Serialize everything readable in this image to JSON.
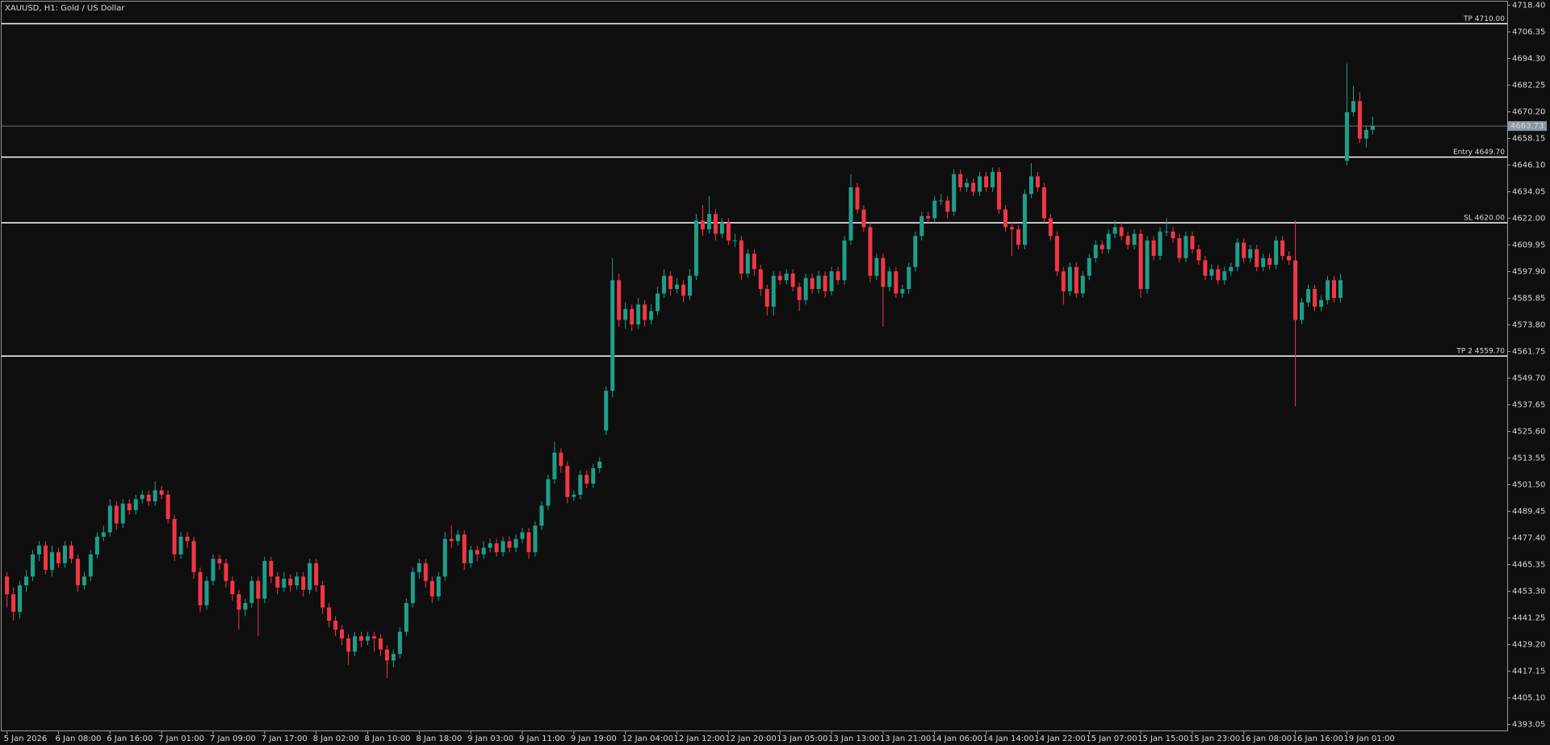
{
  "chart_data": {
    "type": "candlestick",
    "title": "XAUUSD, H1:  Gold / US Dollar",
    "up_color": "#1f9e89",
    "down_color": "#f23645",
    "level_color": "#ffffff",
    "bid_color": "#8a96a3",
    "ylim": [
      4390,
      4720
    ],
    "yticks": [
      {
        "value": 4718.4,
        "label": "4718.40"
      },
      4706.35,
      {
        "value": 4694.3,
        "label": "4694.30"
      },
      4682.25,
      {
        "value": 4670.2,
        "label": "4670.20"
      },
      4658.15,
      {
        "value": 4646.1,
        "label": "4646.10"
      },
      4634.05,
      {
        "value": 4622,
        "label": "4622.00"
      },
      4609.95,
      {
        "value": 4597.9,
        "label": "4597.90"
      },
      4585.85,
      {
        "value": 4573.8,
        "label": "4573.80"
      },
      4561.75,
      {
        "value": 4549.7,
        "label": "4549.70"
      },
      4537.65,
      {
        "value": 4525.6,
        "label": "4525.60"
      },
      4513.55,
      {
        "value": 4501.5,
        "label": "4501.50"
      },
      4489.45,
      {
        "value": 4477.4,
        "label": "4477.40"
      },
      4465.35,
      {
        "value": 4453.3,
        "label": "4453.30"
      },
      4441.25,
      {
        "value": 4429.2,
        "label": "4429.20"
      },
      4417.15,
      {
        "value": 4405.1,
        "label": "4405.10"
      },
      4393.05
    ],
    "levels": [
      {
        "value": 4710,
        "label": "TP 4710.00"
      },
      {
        "value": 4649.7,
        "label": "Entry 4649.70"
      },
      {
        "value": 4620,
        "label": "SL 4620.00"
      },
      {
        "value": 4559.7,
        "label": "TP 2 4559.70"
      }
    ],
    "bid": 4663.73,
    "categories": [
      "5 Jan 2026",
      null,
      null,
      null,
      null,
      null,
      null,
      null,
      "6 Jan 08:00",
      null,
      null,
      null,
      null,
      null,
      null,
      null,
      "6 Jan 16:00",
      null,
      null,
      null,
      null,
      null,
      null,
      null,
      "7 Jan 01:00",
      null,
      null,
      null,
      null,
      null,
      null,
      null,
      "7 Jan 09:00",
      null,
      null,
      null,
      null,
      null,
      null,
      null,
      "7 Jan 17:00",
      null,
      null,
      null,
      null,
      null,
      null,
      null,
      "8 Jan 02:00",
      null,
      null,
      null,
      null,
      null,
      null,
      null,
      "8 Jan 10:00",
      null,
      null,
      null,
      null,
      null,
      null,
      null,
      "8 Jan 18:00",
      null,
      null,
      null,
      null,
      null,
      null,
      null,
      "9 Jan 03:00",
      null,
      null,
      null,
      null,
      null,
      null,
      null,
      "9 Jan 11:00",
      null,
      null,
      null,
      null,
      null,
      null,
      null,
      "9 Jan 19:00",
      null,
      null,
      null,
      null,
      null,
      null,
      null,
      "12 Jan 04:00",
      null,
      null,
      null,
      null,
      null,
      null,
      null,
      "12 Jan 12:00",
      null,
      null,
      null,
      null,
      null,
      null,
      null,
      "12 Jan 20:00",
      null,
      null,
      null,
      null,
      null,
      null,
      null,
      "13 Jan 05:00",
      null,
      null,
      null,
      null,
      null,
      null,
      null,
      "13 Jan 13:00",
      null,
      null,
      null,
      null,
      null,
      null,
      null,
      "13 Jan 21:00",
      null,
      null,
      null,
      null,
      null,
      null,
      null,
      "14 Jan 06:00",
      null,
      null,
      null,
      null,
      null,
      null,
      null,
      "14 Jan 14:00",
      null,
      null,
      null,
      null,
      null,
      null,
      null,
      "14 Jan 22:00",
      null,
      null,
      null,
      null,
      null,
      null,
      null,
      "15 Jan 07:00",
      null,
      null,
      null,
      null,
      null,
      null,
      null,
      "15 Jan 15:00",
      null,
      null,
      null,
      null,
      null,
      null,
      null,
      "15 Jan 23:00",
      null,
      null,
      null,
      null,
      null,
      null,
      null,
      "16 Jan 08:00",
      null,
      null,
      null,
      null,
      null,
      null,
      null,
      "16 Jan 16:00",
      null,
      null,
      null,
      null,
      null,
      null,
      null,
      "19 Jan 01:00",
      null,
      null,
      null,
      null
    ],
    "ohlc": [
      [
        4460,
        4462,
        4446,
        4452
      ],
      [
        4452,
        4455,
        4440,
        4444
      ],
      [
        4444,
        4458,
        4441,
        4456
      ],
      [
        4456,
        4463,
        4453,
        4460
      ],
      [
        4460,
        4472,
        4458,
        4470
      ],
      [
        4470,
        4476,
        4467,
        4474
      ],
      [
        4474,
        4476,
        4461,
        4463
      ],
      [
        4463,
        4474,
        4460,
        4471
      ],
      [
        4471,
        4473,
        4464,
        4466
      ],
      [
        4466,
        4476,
        4464,
        4474
      ],
      [
        4474,
        4476,
        4466,
        4468
      ],
      [
        4468,
        4470,
        4453,
        4456
      ],
      [
        4456,
        4462,
        4454,
        4460
      ],
      [
        4460,
        4472,
        4458,
        4470
      ],
      [
        4470,
        4480,
        4468,
        4478
      ],
      [
        4478,
        4483,
        4476,
        4480
      ],
      [
        4480,
        4495,
        4478,
        4492
      ],
      [
        4492,
        4494,
        4481,
        4484
      ],
      [
        4484,
        4495,
        4482,
        4493
      ],
      [
        4493,
        4495,
        4488,
        4490
      ],
      [
        4490,
        4497,
        4488,
        4495
      ],
      [
        4495,
        4499,
        4493,
        4497
      ],
      [
        4497,
        4499,
        4492,
        4494
      ],
      [
        4494,
        4503,
        4492,
        4499
      ],
      [
        4499,
        4501,
        4495,
        4497
      ],
      [
        4497,
        4499,
        4484,
        4486
      ],
      [
        4486,
        4488,
        4467,
        4470
      ],
      [
        4470,
        4480,
        4468,
        4478
      ],
      [
        4478,
        4480,
        4473,
        4476
      ],
      [
        4476,
        4478,
        4459,
        4462
      ],
      [
        4462,
        4464,
        4444,
        4447
      ],
      [
        4447,
        4460,
        4445,
        4458
      ],
      [
        4458,
        4470,
        4456,
        4468
      ],
      [
        4468,
        4470,
        4463,
        4466
      ],
      [
        4466,
        4468,
        4455,
        4458
      ],
      [
        4458,
        4460,
        4449,
        4452
      ],
      [
        4452,
        4454,
        4436,
        4445
      ],
      [
        4445,
        4450,
        4442,
        4448
      ],
      [
        4448,
        4460,
        4446,
        4458
      ],
      [
        4458,
        4460,
        4433,
        4450
      ],
      [
        4450,
        4469,
        4448,
        4467
      ],
      [
        4467,
        4469,
        4457,
        4460
      ],
      [
        4460,
        4462,
        4452,
        4455
      ],
      [
        4455,
        4462,
        4453,
        4459
      ],
      [
        4459,
        4461,
        4453,
        4456
      ],
      [
        4456,
        4462,
        4454,
        4460
      ],
      [
        4460,
        4462,
        4451,
        4454
      ],
      [
        4454,
        4468,
        4452,
        4466
      ],
      [
        4466,
        4468,
        4453,
        4456
      ],
      [
        4456,
        4458,
        4443,
        4446
      ],
      [
        4446,
        4448,
        4437,
        4440
      ],
      [
        4440,
        4442,
        4433,
        4436
      ],
      [
        4436,
        4438,
        4429,
        4432
      ],
      [
        4432,
        4434,
        4420,
        4426
      ],
      [
        4426,
        4435,
        4424,
        4433
      ],
      [
        4433,
        4435,
        4428,
        4431
      ],
      [
        4431,
        4435,
        4429,
        4433
      ],
      [
        4433,
        4435,
        4426,
        4432
      ],
      [
        4432,
        4434,
        4424,
        4427
      ],
      [
        4427,
        4429,
        4414,
        4422
      ],
      [
        4422,
        4427,
        4419,
        4425
      ],
      [
        4425,
        4437,
        4423,
        4435
      ],
      [
        4435,
        4450,
        4433,
        4448
      ],
      [
        4448,
        4464,
        4446,
        4462
      ],
      [
        4462,
        4468,
        4459,
        4466
      ],
      [
        4466,
        4468,
        4455,
        4458
      ],
      [
        4458,
        4460,
        4448,
        4451
      ],
      [
        4451,
        4462,
        4449,
        4460
      ],
      [
        4460,
        4480,
        4458,
        4477
      ],
      [
        4477,
        4483,
        4473,
        4476
      ],
      [
        4476,
        4481,
        4474,
        4479
      ],
      [
        4479,
        4481,
        4463,
        4466
      ],
      [
        4466,
        4474,
        4464,
        4472
      ],
      [
        4472,
        4474,
        4467,
        4470
      ],
      [
        4470,
        4476,
        4468,
        4473
      ],
      [
        4473,
        4477,
        4471,
        4475
      ],
      [
        4475,
        4477,
        4469,
        4471
      ],
      [
        4471,
        4478,
        4469,
        4476
      ],
      [
        4476,
        4478,
        4471,
        4473
      ],
      [
        4473,
        4479,
        4471,
        4477
      ],
      [
        4477,
        4482,
        4475,
        4480
      ],
      [
        4480,
        4482,
        4468,
        4471
      ],
      [
        4471,
        4485,
        4469,
        4483
      ],
      [
        4483,
        4494,
        4481,
        4492
      ],
      [
        4492,
        4506,
        4490,
        4504
      ],
      [
        4504,
        4521,
        4502,
        4516
      ],
      [
        4516,
        4518,
        4507,
        4510
      ],
      [
        4510,
        4512,
        4493,
        4496
      ],
      [
        4496,
        4499,
        4494,
        4497
      ],
      [
        4497,
        4508,
        4495,
        4506
      ],
      [
        4506,
        4508,
        4500,
        4502
      ],
      [
        4502,
        4511,
        4500,
        4509
      ],
      [
        4509,
        4514,
        4507,
        4512
      ],
      [
        4526,
        4546,
        4524,
        4544
      ],
      [
        4544,
        4604,
        4541,
        4594
      ],
      [
        4594,
        4597,
        4573,
        4576
      ],
      [
        4576,
        4584,
        4572,
        4581
      ],
      [
        4581,
        4583,
        4571,
        4574
      ],
      [
        4574,
        4586,
        4572,
        4583
      ],
      [
        4583,
        4585,
        4573,
        4576
      ],
      [
        4576,
        4583,
        4574,
        4580
      ],
      [
        4580,
        4591,
        4578,
        4588
      ],
      [
        4588,
        4599,
        4586,
        4596
      ],
      [
        4596,
        4598,
        4587,
        4590
      ],
      [
        4590,
        4595,
        4588,
        4592
      ],
      [
        4592,
        4594,
        4584,
        4587
      ],
      [
        4587,
        4599,
        4585,
        4596
      ],
      [
        4596,
        4624,
        4594,
        4621
      ],
      [
        4621,
        4628,
        4614,
        4617
      ],
      [
        4617,
        4632,
        4615,
        4624
      ],
      [
        4624,
        4626,
        4612,
        4615
      ],
      [
        4615,
        4622,
        4613,
        4620
      ],
      [
        4620,
        4622,
        4610,
        4612
      ],
      [
        4612,
        4615,
        4609,
        4612
      ],
      [
        4612,
        4614,
        4594,
        4597
      ],
      [
        4597,
        4608,
        4595,
        4606
      ],
      [
        4606,
        4608,
        4596,
        4599
      ],
      [
        4599,
        4601,
        4587,
        4590
      ],
      [
        4590,
        4592,
        4578,
        4582
      ],
      [
        4582,
        4598,
        4578,
        4596
      ],
      [
        4596,
        4598,
        4592,
        4594
      ],
      [
        4594,
        4599,
        4592,
        4597
      ],
      [
        4597,
        4599,
        4589,
        4591
      ],
      [
        4591,
        4593,
        4580,
        4585
      ],
      [
        4585,
        4597,
        4583,
        4595
      ],
      [
        4595,
        4597,
        4588,
        4590
      ],
      [
        4590,
        4598,
        4588,
        4596
      ],
      [
        4596,
        4598,
        4586,
        4589
      ],
      [
        4589,
        4600,
        4587,
        4598
      ],
      [
        4598,
        4600,
        4592,
        4594
      ],
      [
        4594,
        4614,
        4592,
        4612
      ],
      [
        4612,
        4642,
        4610,
        4636
      ],
      [
        4636,
        4638,
        4624,
        4626
      ],
      [
        4626,
        4628,
        4616,
        4618
      ],
      [
        4618,
        4620,
        4593,
        4596
      ],
      [
        4596,
        4606,
        4594,
        4604
      ],
      [
        4604,
        4606,
        4573,
        4591
      ],
      [
        4591,
        4600,
        4589,
        4598
      ],
      [
        4598,
        4600,
        4586,
        4588
      ],
      [
        4588,
        4592,
        4586,
        4590
      ],
      [
        4590,
        4602,
        4588,
        4600
      ],
      [
        4600,
        4616,
        4598,
        4614
      ],
      [
        4614,
        4625,
        4612,
        4623
      ],
      [
        4623,
        4625,
        4620,
        4622
      ],
      [
        4622,
        4632,
        4620,
        4630
      ],
      [
        4630,
        4633,
        4628,
        4630
      ],
      [
        4630,
        4632,
        4622,
        4625
      ],
      [
        4625,
        4644,
        4623,
        4642
      ],
      [
        4642,
        4644,
        4634,
        4636
      ],
      [
        4636,
        4640,
        4634,
        4638
      ],
      [
        4638,
        4640,
        4632,
        4634
      ],
      [
        4634,
        4643,
        4632,
        4641
      ],
      [
        4641,
        4643,
        4634,
        4636
      ],
      [
        4636,
        4645,
        4634,
        4643
      ],
      [
        4643,
        4645,
        4624,
        4626
      ],
      [
        4626,
        4628,
        4616,
        4618
      ],
      [
        4618,
        4620,
        4605,
        4617
      ],
      [
        4617,
        4619,
        4608,
        4610
      ],
      [
        4610,
        4635,
        4608,
        4633
      ],
      [
        4633,
        4647,
        4631,
        4641
      ],
      [
        4641,
        4643,
        4634,
        4636
      ],
      [
        4636,
        4638,
        4620,
        4622
      ],
      [
        4622,
        4624,
        4612,
        4614
      ],
      [
        4614,
        4616,
        4596,
        4598
      ],
      [
        4598,
        4600,
        4583,
        4589
      ],
      [
        4589,
        4602,
        4587,
        4600
      ],
      [
        4600,
        4602,
        4586,
        4588
      ],
      [
        4588,
        4598,
        4586,
        4596
      ],
      [
        4596,
        4606,
        4594,
        4604
      ],
      [
        4604,
        4612,
        4602,
        4610
      ],
      [
        4610,
        4612,
        4606,
        4608
      ],
      [
        4608,
        4617,
        4606,
        4615
      ],
      [
        4615,
        4621,
        4613,
        4618
      ],
      [
        4618,
        4620,
        4612,
        4614
      ],
      [
        4614,
        4616,
        4608,
        4610
      ],
      [
        4610,
        4617,
        4608,
        4615
      ],
      [
        4615,
        4617,
        4586,
        4590
      ],
      [
        4590,
        4614,
        4588,
        4612
      ],
      [
        4612,
        4614,
        4603,
        4605
      ],
      [
        4605,
        4618,
        4603,
        4616
      ],
      [
        4616,
        4622,
        4614,
        4616
      ],
      [
        4616,
        4618,
        4611,
        4613
      ],
      [
        4613,
        4615,
        4602,
        4604
      ],
      [
        4604,
        4616,
        4602,
        4614
      ],
      [
        4614,
        4616,
        4606,
        4608
      ],
      [
        4608,
        4610,
        4601,
        4603
      ],
      [
        4603,
        4605,
        4594,
        4596
      ],
      [
        4596,
        4601,
        4594,
        4599
      ],
      [
        4599,
        4601,
        4592,
        4594
      ],
      [
        4594,
        4600,
        4592,
        4598
      ],
      [
        4598,
        4602,
        4596,
        4600
      ],
      [
        4600,
        4613,
        4598,
        4611
      ],
      [
        4611,
        4613,
        4602,
        4604
      ],
      [
        4604,
        4610,
        4602,
        4608
      ],
      [
        4608,
        4610,
        4598,
        4600
      ],
      [
        4600,
        4606,
        4598,
        4604
      ],
      [
        4604,
        4606,
        4599,
        4601
      ],
      [
        4601,
        4614,
        4599,
        4612
      ],
      [
        4612,
        4614,
        4603,
        4605
      ],
      [
        4605,
        4607,
        4601,
        4603
      ],
      [
        4603,
        4621,
        4537,
        4576
      ],
      [
        4576,
        4586,
        4574,
        4584
      ],
      [
        4584,
        4592,
        4582,
        4590
      ],
      [
        4590,
        4592,
        4580,
        4582
      ],
      [
        4582,
        4587,
        4580,
        4585
      ],
      [
        4585,
        4596,
        4583,
        4594
      ],
      [
        4594,
        4596,
        4584,
        4586
      ],
      [
        4586,
        4597,
        4584,
        4594
      ],
      [
        4648,
        4692,
        4646,
        4670
      ],
      [
        4670,
        4682,
        4668,
        4675
      ],
      [
        4675,
        4679,
        4656,
        4658
      ],
      [
        4658,
        4664,
        4654,
        4662
      ],
      [
        4662,
        4668,
        4660,
        4663.73
      ]
    ]
  }
}
